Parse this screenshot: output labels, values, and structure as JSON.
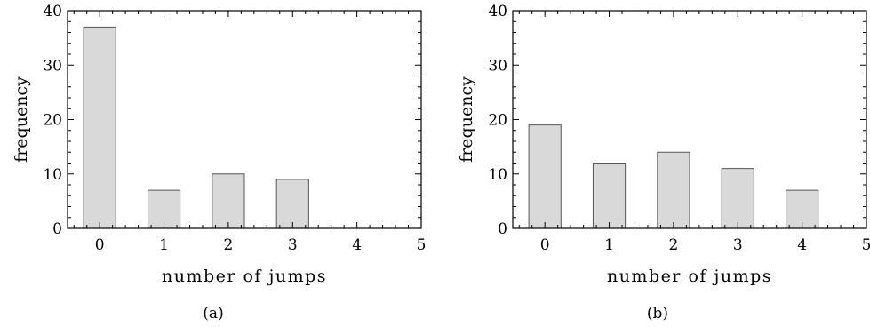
{
  "chart_data": [
    {
      "type": "bar",
      "panel_label": "(a)",
      "title": "",
      "xlabel": "number of jumps",
      "ylabel": "frequency",
      "categories": [
        0,
        1,
        2,
        3,
        4
      ],
      "values": [
        37,
        7,
        10,
        9,
        0
      ],
      "xlim": [
        -0.5,
        5
      ],
      "ylim": [
        0,
        40
      ],
      "x_ticks": [
        0,
        1,
        2,
        3,
        4,
        5
      ],
      "y_ticks": [
        0,
        10,
        20,
        30,
        40
      ],
      "bar_color": "#d9d9d9",
      "grid": false
    },
    {
      "type": "bar",
      "panel_label": "(b)",
      "title": "",
      "xlabel": "number of jumps",
      "ylabel": "frequency",
      "categories": [
        0,
        1,
        2,
        3,
        4
      ],
      "values": [
        19,
        12,
        14,
        11,
        7
      ],
      "xlim": [
        -0.5,
        5
      ],
      "ylim": [
        0,
        40
      ],
      "x_ticks": [
        0,
        1,
        2,
        3,
        4,
        5
      ],
      "y_ticks": [
        0,
        10,
        20,
        30,
        40
      ],
      "bar_color": "#d9d9d9",
      "grid": false
    }
  ]
}
